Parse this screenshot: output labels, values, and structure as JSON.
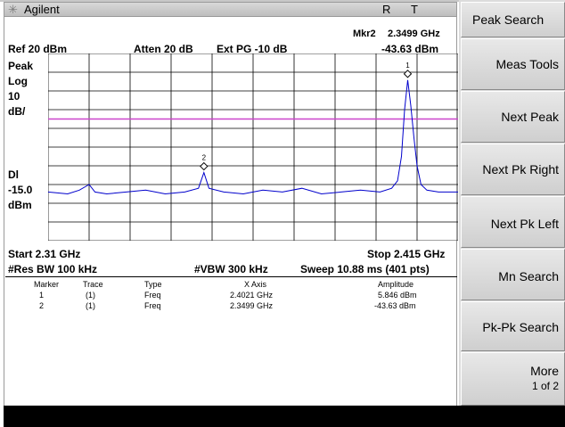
{
  "title": {
    "brand": "Agilent",
    "indicator_r": "R",
    "indicator_t": "T"
  },
  "marker_readout": {
    "label": "Mkr2",
    "freq": "2.3499 GHz",
    "amplitude": "-43.63 dBm"
  },
  "settings": {
    "ref_level": "Ref 20 dBm",
    "atten": "Atten 20 dB",
    "ext_pg": "Ext PG -10 dB",
    "detector": "Peak",
    "scale_type": "Log",
    "scale_value": "10",
    "scale_unit": "dB/",
    "dl_label": "Dl",
    "dl_value": "-15.0",
    "dl_unit": "dBm"
  },
  "sweep": {
    "start": "Start 2.31 GHz",
    "stop": "Stop 2.415 GHz",
    "res_bw": "#Res BW 100 kHz",
    "vbw": "#VBW 300 kHz",
    "sweep_time": "Sweep 10.88 ms (401 pts)"
  },
  "marker_table": {
    "headers": [
      "Marker",
      "Trace",
      "Type",
      "X Axis",
      "Amplitude"
    ],
    "rows": [
      [
        "1",
        "(1)",
        "Freq",
        "2.4021 GHz",
        "5.846 dBm"
      ],
      [
        "2",
        "(1)",
        "Freq",
        "2.3499 GHz",
        "-43.63 dBm"
      ]
    ]
  },
  "softkeys": {
    "title": "Peak Search",
    "keys": [
      "Meas Tools",
      "Next Peak",
      "Next Pk Right",
      "Next Pk Left",
      "Mn Search",
      "Pk-Pk Search",
      "More",
      "1 of 2"
    ]
  },
  "markers_on_trace": [
    "1",
    "2"
  ],
  "colors": {
    "trace": "#0000cc",
    "display_line": "#cc44cc",
    "grid": "#000000"
  },
  "chart_data": {
    "type": "line",
    "xlim": [
      2.31,
      2.415
    ],
    "ylim": [
      -80,
      20
    ],
    "display_line": -15.0,
    "x": [
      2.31,
      2.315,
      2.318,
      2.3205,
      2.322,
      2.325,
      2.33,
      2.335,
      2.34,
      2.345,
      2.3485,
      2.3499,
      2.3512,
      2.355,
      2.36,
      2.365,
      2.37,
      2.375,
      2.38,
      2.385,
      2.39,
      2.395,
      2.398,
      2.3995,
      2.4005,
      2.4013,
      2.4021,
      2.4029,
      2.4037,
      2.4045,
      2.4055,
      2.407,
      2.41,
      2.415
    ],
    "y": [
      -54,
      -55,
      -53,
      -50,
      -54,
      -55,
      -54,
      -53,
      -55,
      -54,
      -52,
      -43.6,
      -52,
      -54,
      -55,
      -53,
      -54,
      -52,
      -55,
      -54,
      -53,
      -54,
      -52,
      -48,
      -35,
      -10,
      5.8,
      -8,
      -25,
      -40,
      -50,
      -53,
      -54,
      -54
    ]
  }
}
